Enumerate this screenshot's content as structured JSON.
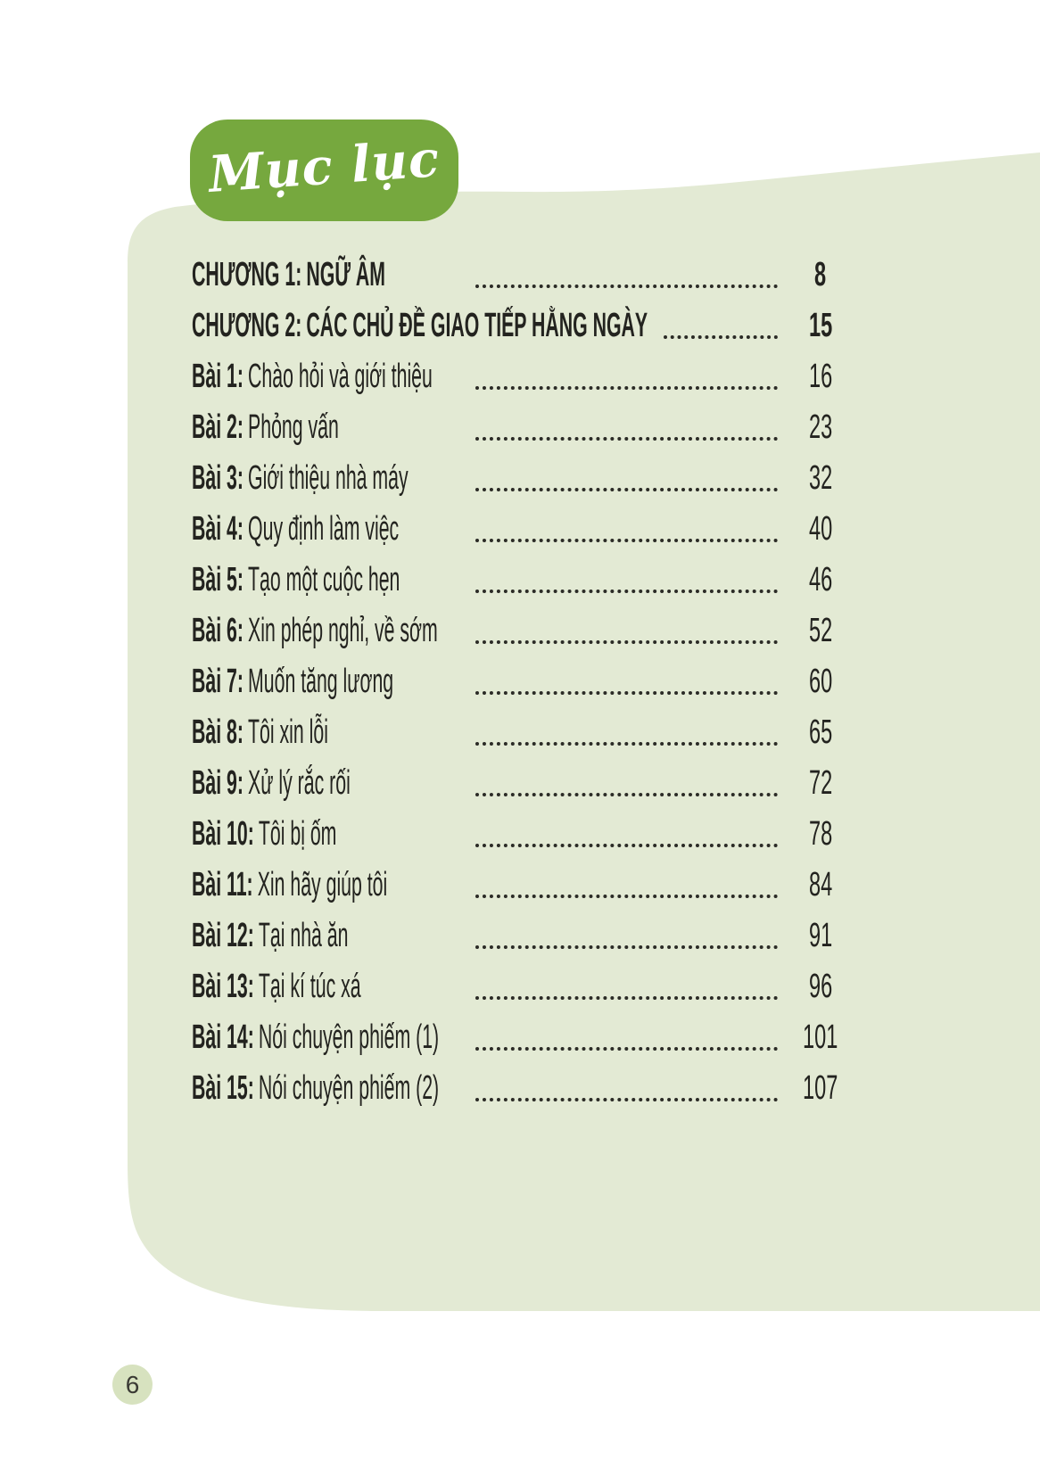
{
  "header": {
    "label": "Mục lục"
  },
  "toc": {
    "entries": [
      {
        "prefix": "CHƯƠNG 1:",
        "title": "NGỮ ÂM",
        "page": "8",
        "type": "chapter"
      },
      {
        "prefix": "CHƯƠNG 2:",
        "title": "CÁC CHỦ ĐỀ GIAO TIẾP HẰNG NGÀY",
        "page": "15",
        "type": "chapter"
      },
      {
        "prefix": "Bài 1:",
        "title": "Chào hỏi và giới thiệu",
        "page": "16",
        "type": "lesson"
      },
      {
        "prefix": "Bài 2:",
        "title": "Phỏng vấn",
        "page": "23",
        "type": "lesson"
      },
      {
        "prefix": "Bài 3:",
        "title": "Giới thiệu nhà máy",
        "page": "32",
        "type": "lesson"
      },
      {
        "prefix": "Bài 4:",
        "title": "Quy định làm việc",
        "page": "40",
        "type": "lesson"
      },
      {
        "prefix": "Bài 5:",
        "title": "Tạo một cuộc hẹn",
        "page": "46",
        "type": "lesson"
      },
      {
        "prefix": "Bài 6:",
        "title": "Xin phép nghỉ, về sớm",
        "page": "52",
        "type": "lesson"
      },
      {
        "prefix": "Bài 7:",
        "title": "Muốn tăng lương",
        "page": "60",
        "type": "lesson"
      },
      {
        "prefix": "Bài 8:",
        "title": "Tôi xin lỗi",
        "page": "65",
        "type": "lesson"
      },
      {
        "prefix": "Bài 9:",
        "title": "Xử lý rắc rối",
        "page": "72",
        "type": "lesson"
      },
      {
        "prefix": "Bài 10:",
        "title": "Tôi bị ốm",
        "page": "78",
        "type": "lesson"
      },
      {
        "prefix": "Bài 11:",
        "title": "Xin hãy giúp tôi",
        "page": "84",
        "type": "lesson"
      },
      {
        "prefix": "Bài 12:",
        "title": "Tại nhà ăn",
        "page": "91",
        "type": "lesson"
      },
      {
        "prefix": "Bài 13:",
        "title": "Tại kí túc xá",
        "page": "96",
        "type": "lesson"
      },
      {
        "prefix": "Bài 14:",
        "title": "Nói chuyện phiếm (1)",
        "page": "101",
        "type": "lesson"
      },
      {
        "prefix": "Bài 15:",
        "title": "Nói chuyện phiếm (2)",
        "page": "107",
        "type": "lesson"
      }
    ]
  },
  "footer": {
    "page_number": "6"
  },
  "colors": {
    "header_box_green": "#76a83e",
    "panel_light_green": "#e3ead4",
    "footer_circle_green": "#d7e2bf",
    "text_dark": "#23231f"
  }
}
